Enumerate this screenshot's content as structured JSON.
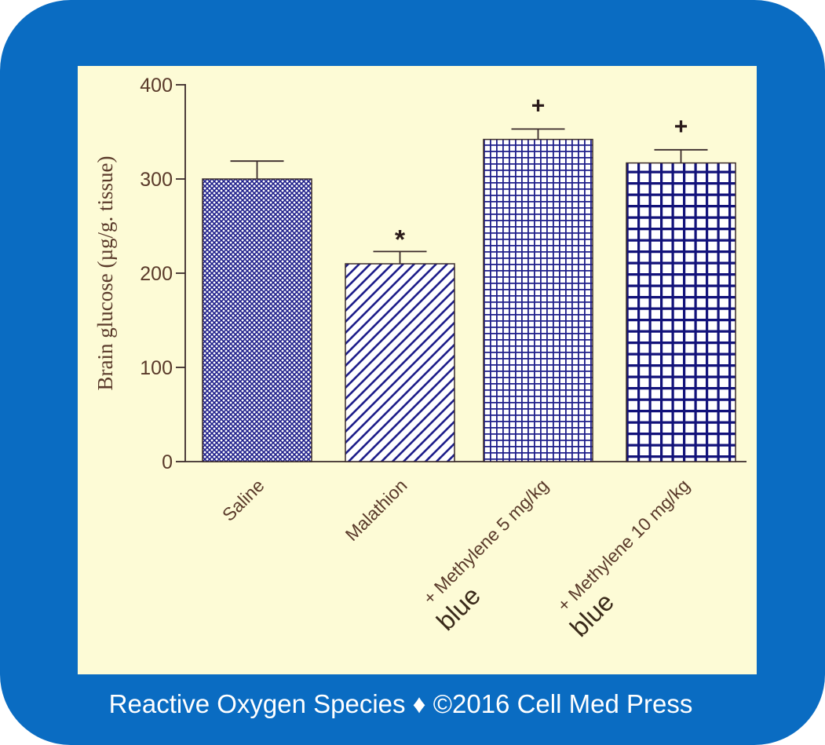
{
  "chart_data": {
    "type": "bar",
    "ylabel": "Brain glucose (µg/g. tissue)",
    "ylim": [
      0,
      400
    ],
    "yticks": [
      0,
      100,
      200,
      300,
      400
    ],
    "grid": false,
    "categories": [
      {
        "line1": "Saline",
        "line2": ""
      },
      {
        "line1": "Malathion",
        "line2": ""
      },
      {
        "line1": "+ Methylene 5 mg/kg",
        "line2": "blue"
      },
      {
        "line1": "+ Methylene 10 mg/kg",
        "line2": "blue"
      }
    ],
    "values": [
      300,
      210,
      342,
      317
    ],
    "errors": [
      19,
      13,
      11,
      14
    ],
    "annotations": [
      "",
      "*",
      "+",
      "+"
    ],
    "patterns": [
      "fine-crosshatch",
      "diagonal-stripes",
      "grid-fine",
      "grid-coarse"
    ],
    "colors": {
      "bar_pattern": "#1e1e8a",
      "axis": "#3a2a2a",
      "label_text": "#5a3a2a"
    }
  },
  "footer": {
    "text": "Reactive Oxygen Species ♦ ©2016 Cell Med Press"
  }
}
